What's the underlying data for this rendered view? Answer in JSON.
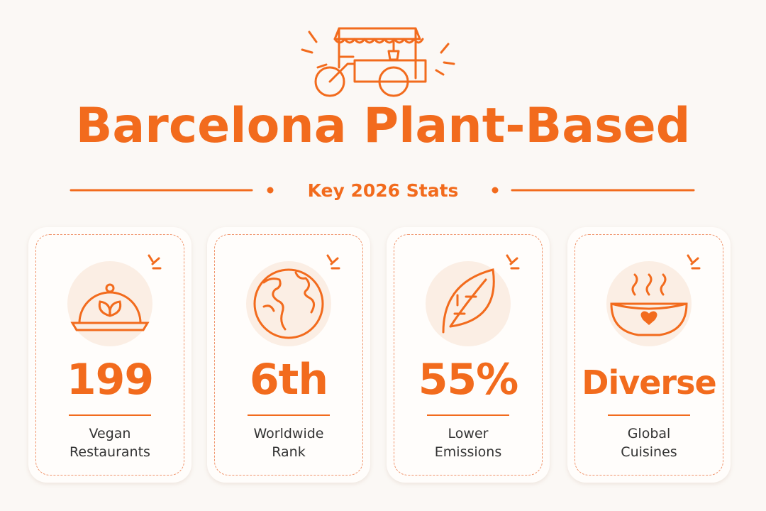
{
  "header": {
    "title": "Barcelona Plant-Based",
    "subtitle": "Key 2026 Stats"
  },
  "cards": [
    {
      "stat": "199",
      "label": "Vegan Restaurants"
    },
    {
      "stat": "6th",
      "label": "Worldwide Rank"
    },
    {
      "stat": "55%",
      "label": "Lower Emissions"
    },
    {
      "stat": "Diverse",
      "label": "Global Cuisines"
    }
  ]
}
